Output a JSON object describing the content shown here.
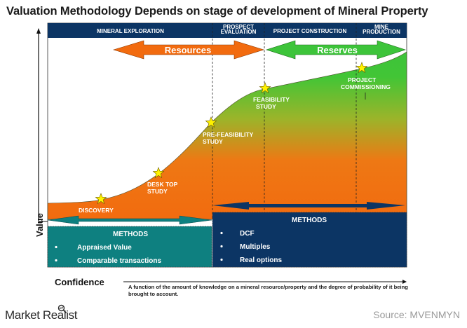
{
  "title": "Valuation Methodology Depends on stage of development of Mineral Property",
  "phases": [
    {
      "label_lines": [
        "MINERAL EXPLORATION"
      ]
    },
    {
      "label_lines": [
        "PROSPECT",
        "EVALUATION"
      ]
    },
    {
      "label_lines": [
        "PROJECT CONSTRUCTION"
      ]
    },
    {
      "label_lines": [
        "MINE",
        "PRODUCTION"
      ]
    }
  ],
  "range_arrows": {
    "resources": {
      "label": "Resources",
      "color": "#F26B0F"
    },
    "reserves": {
      "label": "Reserves",
      "color": "#3DC43A"
    }
  },
  "milestones": [
    {
      "label_lines": [
        "DISCOVERY"
      ]
    },
    {
      "label_lines": [
        "DESK TOP",
        "STUDY"
      ]
    },
    {
      "label_lines": [
        "PRE-FEASIBILITY",
        "STUDY"
      ]
    },
    {
      "label_lines": [
        "FEASIBILITY",
        "STUDY"
      ]
    },
    {
      "label_lines": [
        "PROJECT",
        "COMMISSIONING"
      ]
    }
  ],
  "methods_early": {
    "title": "METHODS",
    "items": [
      "Appraised Value",
      "Comparable transactions"
    ],
    "color": "#0E8080"
  },
  "methods_late": {
    "title": "METHODS",
    "items": [
      "DCF",
      "Multiples",
      "Real options"
    ],
    "color": "#0C3564"
  },
  "axes": {
    "y_label": "Value",
    "x_label": "Confidence"
  },
  "confidence_note": "A function of the amount of knowledge on a mineral resource/property and the degree of probability of it being brought to account.",
  "brand": "Market Realist",
  "source": "Source: MVENMYN",
  "colors": {
    "header_bar": "#0C3564",
    "curve_low": "#F26B0F",
    "curve_high": "#3DC43A",
    "star": "#FFF200"
  }
}
